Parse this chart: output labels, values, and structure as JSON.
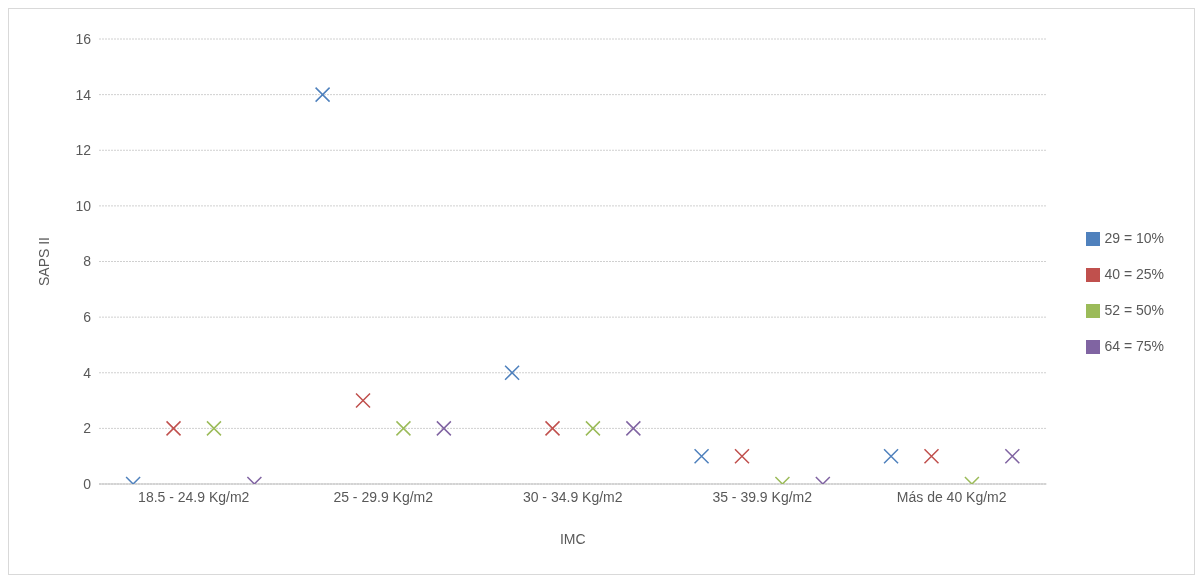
{
  "chart_data": {
    "type": "scatter",
    "xlabel": "IMC",
    "ylabel": "SAPS II",
    "categories": [
      "18.5 - 24.9 Kg/m2",
      "25 - 29.9 Kg/m2",
      "30 - 34.9 Kg/m2",
      "35 - 39.9 Kg/m2",
      "Más de 40 Kg/m2"
    ],
    "series": [
      {
        "name": "29 = 10%",
        "color": "#4f81bd",
        "values": [
          0,
          14,
          4,
          1,
          1
        ]
      },
      {
        "name": "40 = 25%",
        "color": "#c0504d",
        "values": [
          2,
          3,
          2,
          1,
          1
        ]
      },
      {
        "name": "52 = 50%",
        "color": "#9bbb59",
        "values": [
          2,
          2,
          2,
          0,
          0
        ]
      },
      {
        "name": "64 = 75%",
        "color": "#8064a2",
        "values": [
          0,
          2,
          2,
          0,
          1
        ]
      }
    ],
    "ylim": [
      0,
      16
    ],
    "yticks": [
      0,
      2,
      4,
      6,
      8,
      10,
      12,
      14,
      16
    ],
    "grid": "y",
    "legend": "right",
    "marker": "cross"
  }
}
